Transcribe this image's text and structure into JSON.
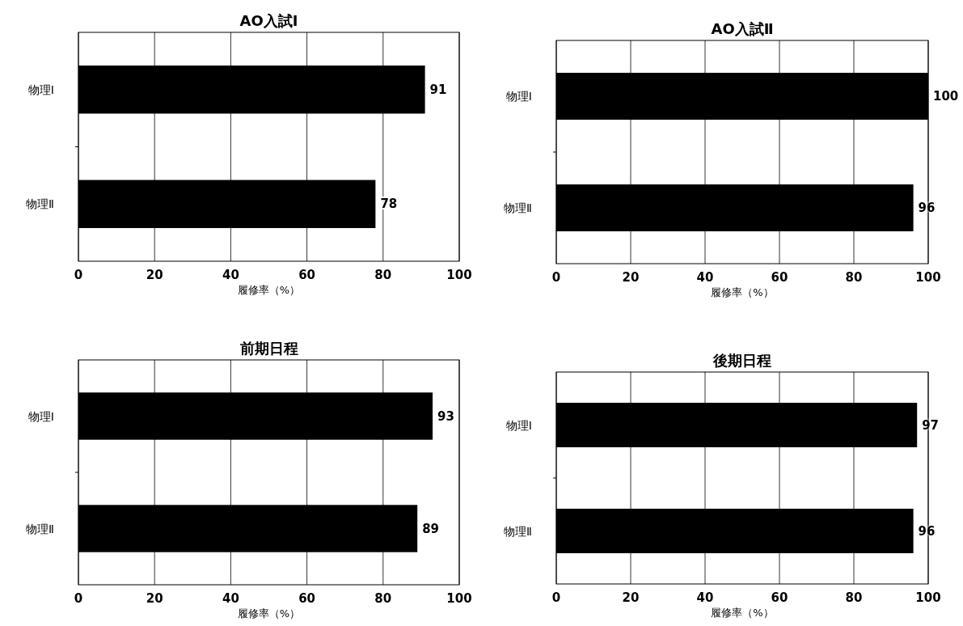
{
  "chart_data": [
    {
      "type": "bar",
      "orientation": "horizontal",
      "title": "AO入試Ⅰ",
      "xlabel": "履修率（%）",
      "categories": [
        "物理Ⅰ",
        "物理Ⅱ"
      ],
      "values": [
        91,
        78
      ],
      "color": "#000000",
      "xlim": [
        0,
        100
      ],
      "xticks": [
        0,
        20,
        40,
        60,
        80,
        100
      ],
      "grid": "x",
      "data_labels": true
    },
    {
      "type": "bar",
      "orientation": "horizontal",
      "title": "AO入試Ⅱ",
      "xlabel": "履修率（%）",
      "categories": [
        "物理Ⅰ",
        "物理Ⅱ"
      ],
      "values": [
        100,
        96
      ],
      "color": "#000000",
      "xlim": [
        0,
        100
      ],
      "xticks": [
        0,
        20,
        40,
        60,
        80,
        100
      ],
      "grid": "x",
      "data_labels": true
    },
    {
      "type": "bar",
      "orientation": "horizontal",
      "title": "前期日程",
      "xlabel": "履修率（%）",
      "categories": [
        "物理Ⅰ",
        "物理Ⅱ"
      ],
      "values": [
        93,
        89
      ],
      "color": "#000000",
      "xlim": [
        0,
        100
      ],
      "xticks": [
        0,
        20,
        40,
        60,
        80,
        100
      ],
      "grid": "x",
      "data_labels": true
    },
    {
      "type": "bar",
      "orientation": "horizontal",
      "title": "後期日程",
      "xlabel": "履修率（%）",
      "categories": [
        "物理Ⅰ",
        "物理Ⅱ"
      ],
      "values": [
        97,
        96
      ],
      "color": "#000000",
      "xlim": [
        0,
        100
      ],
      "xticks": [
        0,
        20,
        40,
        60,
        80,
        100
      ],
      "grid": "x",
      "data_labels": true
    }
  ]
}
